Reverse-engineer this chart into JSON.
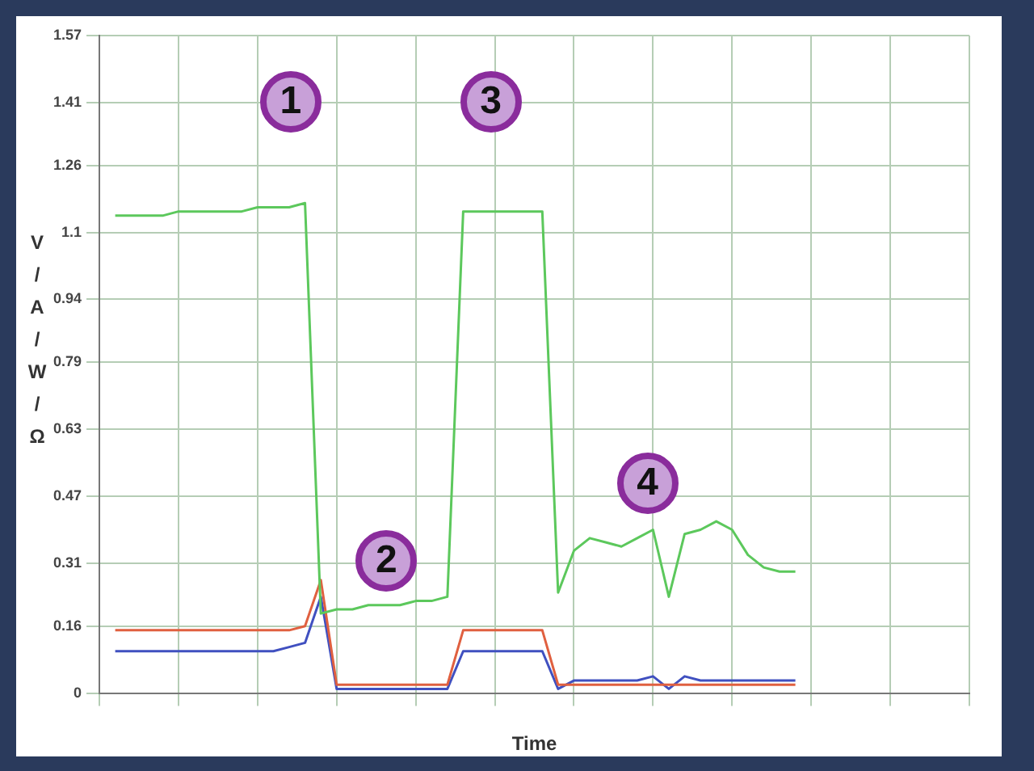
{
  "chart_data": {
    "type": "line",
    "xlabel": "Time",
    "ylabel": "V/A/W/Ω",
    "categories": [
      null,
      null,
      null,
      null,
      null,
      null,
      null,
      null,
      null,
      null,
      null,
      null,
      null,
      null,
      null,
      null,
      null,
      null,
      null,
      null,
      null,
      null,
      null,
      null,
      null,
      null,
      null,
      null,
      null,
      null,
      null,
      null,
      null,
      null,
      null,
      null,
      null,
      null,
      null,
      null,
      null,
      null,
      null,
      null,
      null,
      null,
      null,
      null,
      null,
      null,
      null,
      null,
      null,
      null,
      null,
      null
    ],
    "ylim": [
      0,
      1.57
    ],
    "yticks": [
      0,
      0.16,
      0.31,
      0.47,
      0.63,
      0.79,
      0.94,
      1.1,
      1.26,
      1.41,
      1.57
    ],
    "grid": true,
    "legend": false,
    "marker": "none",
    "line_style": "solid",
    "series": [
      {
        "color": "#5cc85c",
        "values": [
          null,
          1.14,
          1.14,
          1.14,
          1.14,
          1.15,
          1.15,
          1.15,
          1.15,
          1.15,
          1.16,
          1.16,
          1.16,
          1.17,
          0.19,
          0.2,
          0.2,
          0.21,
          0.21,
          0.21,
          0.22,
          0.22,
          0.23,
          1.15,
          1.15,
          1.15,
          1.15,
          1.15,
          1.15,
          0.24,
          0.34,
          0.37,
          0.36,
          0.35,
          0.37,
          0.39,
          0.23,
          0.38,
          0.39,
          0.41,
          0.39,
          0.33,
          0.3,
          0.29,
          0.29,
          null,
          null,
          null,
          null,
          null,
          null,
          null,
          null,
          null,
          null,
          null
        ]
      },
      {
        "color": "#e06040",
        "values": [
          null,
          0.15,
          0.15,
          0.15,
          0.15,
          0.15,
          0.15,
          0.15,
          0.15,
          0.15,
          0.15,
          0.15,
          0.15,
          0.16,
          0.27,
          0.02,
          0.02,
          0.02,
          0.02,
          0.02,
          0.02,
          0.02,
          0.02,
          0.15,
          0.15,
          0.15,
          0.15,
          0.15,
          0.15,
          0.02,
          0.02,
          0.02,
          0.02,
          0.02,
          0.02,
          0.02,
          0.02,
          0.02,
          0.02,
          0.02,
          0.02,
          0.02,
          0.02,
          0.02,
          0.02,
          null,
          null,
          null,
          null,
          null,
          null,
          null,
          null,
          null,
          null,
          null
        ]
      },
      {
        "color": "#4050c0",
        "values": [
          null,
          0.1,
          0.1,
          0.1,
          0.1,
          0.1,
          0.1,
          0.1,
          0.1,
          0.1,
          0.1,
          0.1,
          0.11,
          0.12,
          0.23,
          0.01,
          0.01,
          0.01,
          0.01,
          0.01,
          0.01,
          0.01,
          0.01,
          0.1,
          0.1,
          0.1,
          0.1,
          0.1,
          0.1,
          0.01,
          0.03,
          0.03,
          0.03,
          0.03,
          0.03,
          0.04,
          0.01,
          0.04,
          0.03,
          0.03,
          0.03,
          0.03,
          0.03,
          0.03,
          0.03,
          null,
          null,
          null,
          null,
          null,
          null,
          null,
          null,
          null,
          null,
          null
        ]
      }
    ],
    "annotations": [
      "1",
      "2",
      "3",
      "4"
    ]
  }
}
